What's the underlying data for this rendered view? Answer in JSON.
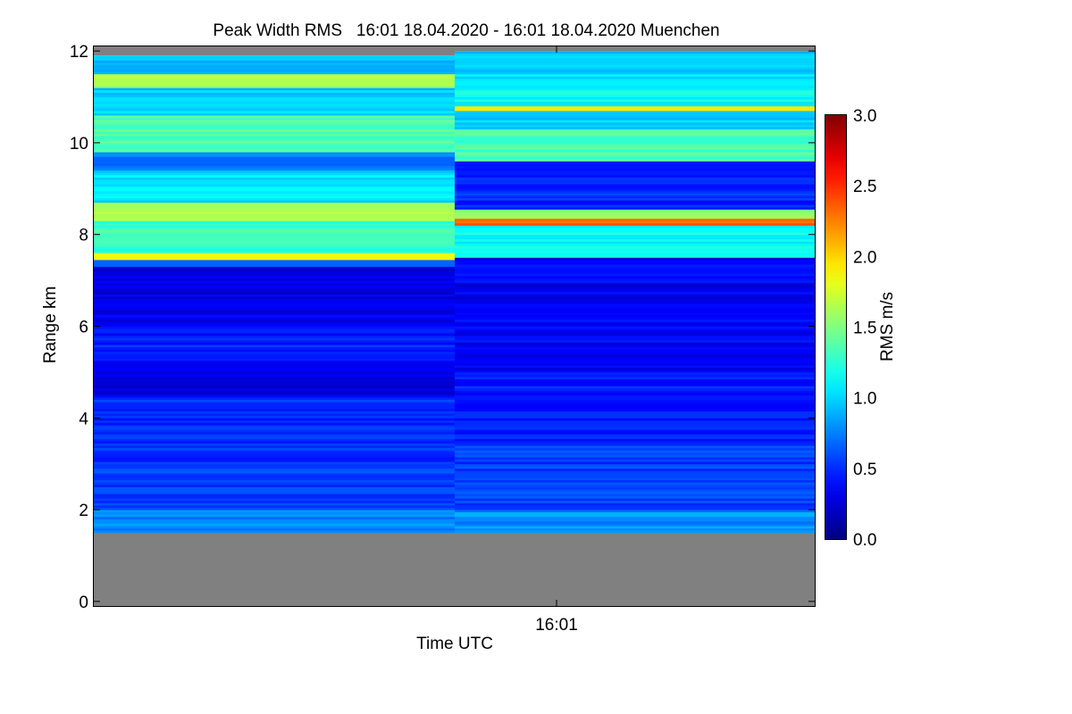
{
  "chart_data": {
    "type": "heatmap",
    "title": "Peak Width RMS   16:01 18.04.2020 - 16:01 18.04.2020 Muenchen",
    "xlabel": "Time UTC",
    "ylabel": "Range km",
    "colorbar_label": "RMS m/s",
    "x_tick_labels": [
      "16:01"
    ],
    "y_ticks": [
      0,
      2,
      4,
      6,
      8,
      10,
      12
    ],
    "ylim": [
      -0.1,
      12.1
    ],
    "colorbar_ticks": [
      "0.0",
      "0.5",
      "1.0",
      "1.5",
      "2.0",
      "2.5",
      "3.0"
    ],
    "colorbar_range": [
      0.0,
      3.0
    ],
    "colormap": "jet",
    "no_data_color": "#808080",
    "profiles": [
      {
        "column": 1,
        "no_data_below_km": 1.5,
        "no_data_above_km": 11.9,
        "bands": [
          {
            "from": 1.5,
            "to": 2.0,
            "value": 0.75
          },
          {
            "from": 2.0,
            "to": 3.0,
            "value": 0.55
          },
          {
            "from": 3.0,
            "to": 4.5,
            "value": 0.5
          },
          {
            "from": 4.5,
            "to": 5.2,
            "value": 0.3
          },
          {
            "from": 5.2,
            "to": 6.0,
            "value": 0.45
          },
          {
            "from": 6.0,
            "to": 7.3,
            "value": 0.3
          },
          {
            "from": 7.3,
            "to": 7.45,
            "value": 0.6
          },
          {
            "from": 7.45,
            "to": 7.6,
            "value": 1.8
          },
          {
            "from": 7.6,
            "to": 8.3,
            "value": 1.3
          },
          {
            "from": 8.3,
            "to": 8.7,
            "value": 1.65
          },
          {
            "from": 8.7,
            "to": 9.4,
            "value": 1.05
          },
          {
            "from": 9.4,
            "to": 9.8,
            "value": 0.75
          },
          {
            "from": 9.8,
            "to": 10.6,
            "value": 1.35
          },
          {
            "from": 10.6,
            "to": 11.2,
            "value": 1.0
          },
          {
            "from": 11.2,
            "to": 11.5,
            "value": 1.65
          },
          {
            "from": 11.5,
            "to": 11.9,
            "value": 0.9
          }
        ]
      },
      {
        "column": 2,
        "no_data_below_km": 1.5,
        "no_data_above_km": 12.0,
        "bands": [
          {
            "from": 1.5,
            "to": 2.0,
            "value": 0.8
          },
          {
            "from": 2.0,
            "to": 3.5,
            "value": 0.55
          },
          {
            "from": 3.5,
            "to": 5.0,
            "value": 0.45
          },
          {
            "from": 5.0,
            "to": 7.5,
            "value": 0.35
          },
          {
            "from": 7.5,
            "to": 8.2,
            "value": 1.15
          },
          {
            "from": 8.2,
            "to": 8.35,
            "value": 2.3
          },
          {
            "from": 8.35,
            "to": 8.55,
            "value": 1.5
          },
          {
            "from": 8.55,
            "to": 9.6,
            "value": 0.5
          },
          {
            "from": 9.6,
            "to": 10.3,
            "value": 1.35
          },
          {
            "from": 10.3,
            "to": 10.7,
            "value": 1.0
          },
          {
            "from": 10.7,
            "to": 10.8,
            "value": 1.95
          },
          {
            "from": 10.8,
            "to": 11.3,
            "value": 1.15
          },
          {
            "from": 11.3,
            "to": 12.0,
            "value": 1.0
          }
        ]
      }
    ]
  }
}
